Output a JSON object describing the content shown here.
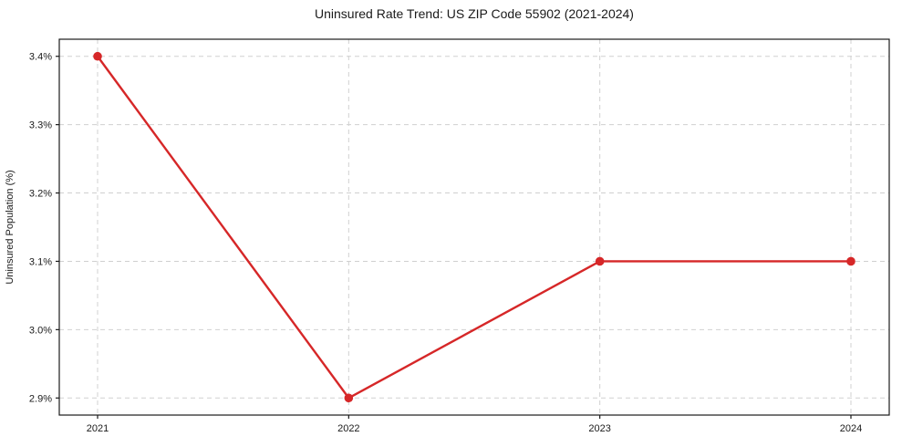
{
  "page": {
    "background_color": "#ffffff",
    "text_color": "#1a1a1a"
  },
  "chart_data": {
    "type": "line",
    "title": "Uninsured Rate Trend: US ZIP Code 55902 (2021-2024)",
    "xlabel": "",
    "ylabel": "Uninsured Population (%)",
    "x": [
      "2021",
      "2022",
      "2023",
      "2024"
    ],
    "series": [
      {
        "name": "Uninsured Population (%)",
        "values": [
          3.4,
          2.9,
          3.1,
          3.1
        ]
      }
    ],
    "yticks": [
      {
        "value": 2.9,
        "label": "2.9%"
      },
      {
        "value": 3.0,
        "label": "3.0%"
      },
      {
        "value": 3.1,
        "label": "3.1%"
      },
      {
        "value": 3.2,
        "label": "3.2%"
      },
      {
        "value": 3.3,
        "label": "3.3%"
      },
      {
        "value": 3.4,
        "label": "3.4%"
      }
    ],
    "ylim": [
      2.875,
      3.425
    ],
    "grid": true,
    "grid_style": "dashed",
    "legend_position": "none",
    "style": {
      "line_color": "#d62728",
      "marker": "circle",
      "marker_color": "#d62728",
      "grid_color": "#d0d0d0",
      "axis_color": "#1a1a1a",
      "text_color": "#1a1a1a"
    }
  }
}
